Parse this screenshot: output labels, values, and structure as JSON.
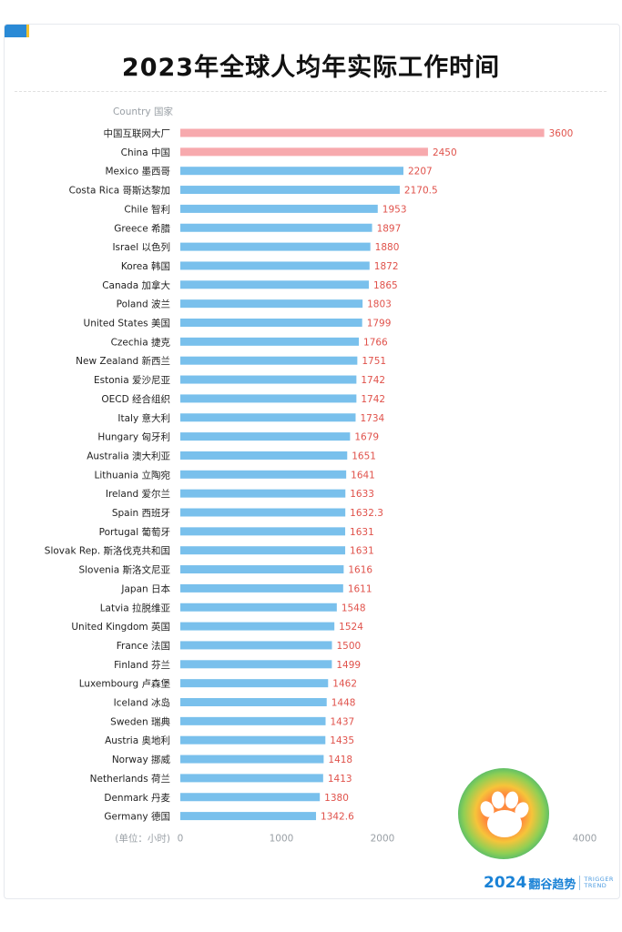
{
  "title": "2023年全球人均年实际工作时间",
  "colors": {
    "highlight_bar": "#f7a9ad",
    "normal_bar": "#79c0ec",
    "value_label": "#e0524b",
    "brand": "#1a82d6"
  },
  "chart_data": {
    "type": "bar",
    "orientation": "horizontal",
    "category_header": "Country 国家",
    "unit_label": "(单位：小时)",
    "xlim": [
      0,
      4000
    ],
    "x_ticks": [
      "0",
      "1000",
      "2000",
      "4000"
    ],
    "grid": false,
    "bars": [
      {
        "label": "中国互联网大厂",
        "value": 3600,
        "value_label": "3600",
        "highlight": true
      },
      {
        "label": "China 中国",
        "value": 2450,
        "value_label": "2450",
        "highlight": true
      },
      {
        "label": "Mexico 墨西哥",
        "value": 2207,
        "value_label": "2207",
        "highlight": false
      },
      {
        "label": "Costa Rica 哥斯达黎加",
        "value": 2170.5,
        "value_label": "2170.5",
        "highlight": false
      },
      {
        "label": "Chile 智利",
        "value": 1953,
        "value_label": "1953",
        "highlight": false
      },
      {
        "label": "Greece 希腊",
        "value": 1897,
        "value_label": "1897",
        "highlight": false
      },
      {
        "label": "Israel 以色列",
        "value": 1880,
        "value_label": "1880",
        "highlight": false
      },
      {
        "label": "Korea 韩国",
        "value": 1872,
        "value_label": "1872",
        "highlight": false
      },
      {
        "label": "Canada 加拿大",
        "value": 1865,
        "value_label": "1865",
        "highlight": false
      },
      {
        "label": "Poland 波兰",
        "value": 1803,
        "value_label": "1803",
        "highlight": false
      },
      {
        "label": "United States 美国",
        "value": 1799,
        "value_label": "1799",
        "highlight": false
      },
      {
        "label": "Czechia 捷克",
        "value": 1766,
        "value_label": "1766",
        "highlight": false
      },
      {
        "label": "New Zealand 新西兰",
        "value": 1751,
        "value_label": "1751",
        "highlight": false
      },
      {
        "label": "Estonia 爱沙尼亚",
        "value": 1742,
        "value_label": "1742",
        "highlight": false
      },
      {
        "label": "OECD 经合组织",
        "value": 1742,
        "value_label": "1742",
        "highlight": false
      },
      {
        "label": "Italy 意大利",
        "value": 1734,
        "value_label": "1734",
        "highlight": false
      },
      {
        "label": "Hungary 匈牙利",
        "value": 1679,
        "value_label": "1679",
        "highlight": false
      },
      {
        "label": "Australia 澳大利亚",
        "value": 1651,
        "value_label": "1651",
        "highlight": false
      },
      {
        "label": "Lithuania 立陶宛",
        "value": 1641,
        "value_label": "1641",
        "highlight": false
      },
      {
        "label": "Ireland 爱尔兰",
        "value": 1633,
        "value_label": "1633",
        "highlight": false
      },
      {
        "label": "Spain 西班牙",
        "value": 1632.3,
        "value_label": "1632.3",
        "highlight": false
      },
      {
        "label": "Portugal 葡萄牙",
        "value": 1631,
        "value_label": "1631",
        "highlight": false
      },
      {
        "label": "Slovak Rep. 斯洛伐克共和国",
        "value": 1631,
        "value_label": "1631",
        "highlight": false
      },
      {
        "label": "Slovenia 斯洛文尼亚",
        "value": 1616,
        "value_label": "1616",
        "highlight": false
      },
      {
        "label": "Japan 日本",
        "value": 1611,
        "value_label": "1611",
        "highlight": false
      },
      {
        "label": "Latvia 拉脱维亚",
        "value": 1548,
        "value_label": "1548",
        "highlight": false
      },
      {
        "label": "United Kingdom 英国",
        "value": 1524,
        "value_label": "1524",
        "highlight": false
      },
      {
        "label": "France 法国",
        "value": 1500,
        "value_label": "1500",
        "highlight": false
      },
      {
        "label": "Finland 芬兰",
        "value": 1499,
        "value_label": "1499",
        "highlight": false
      },
      {
        "label": "Luxembourg 卢森堡",
        "value": 1462,
        "value_label": "1462",
        "highlight": false
      },
      {
        "label": "Iceland 冰岛",
        "value": 1448,
        "value_label": "1448",
        "highlight": false
      },
      {
        "label": "Sweden 瑞典",
        "value": 1437,
        "value_label": "1437",
        "highlight": false
      },
      {
        "label": "Austria 奥地利",
        "value": 1435,
        "value_label": "1435",
        "highlight": false
      },
      {
        "label": "Norway 挪威",
        "value": 1418,
        "value_label": "1418",
        "highlight": false
      },
      {
        "label": "Netherlands 荷兰",
        "value": 1413,
        "value_label": "1413",
        "highlight": false
      },
      {
        "label": "Denmark 丹麦",
        "value": 1380,
        "value_label": "1380",
        "highlight": false
      },
      {
        "label": "Germany 德国",
        "value": 1342.6,
        "value_label": "1342.6",
        "highlight": false
      }
    ]
  },
  "brand": {
    "year": "2024",
    "name": "翻谷趋势",
    "tag_line1": "TRIGGER",
    "tag_line2": "TREND",
    "badge_icon": "paw-icon"
  }
}
